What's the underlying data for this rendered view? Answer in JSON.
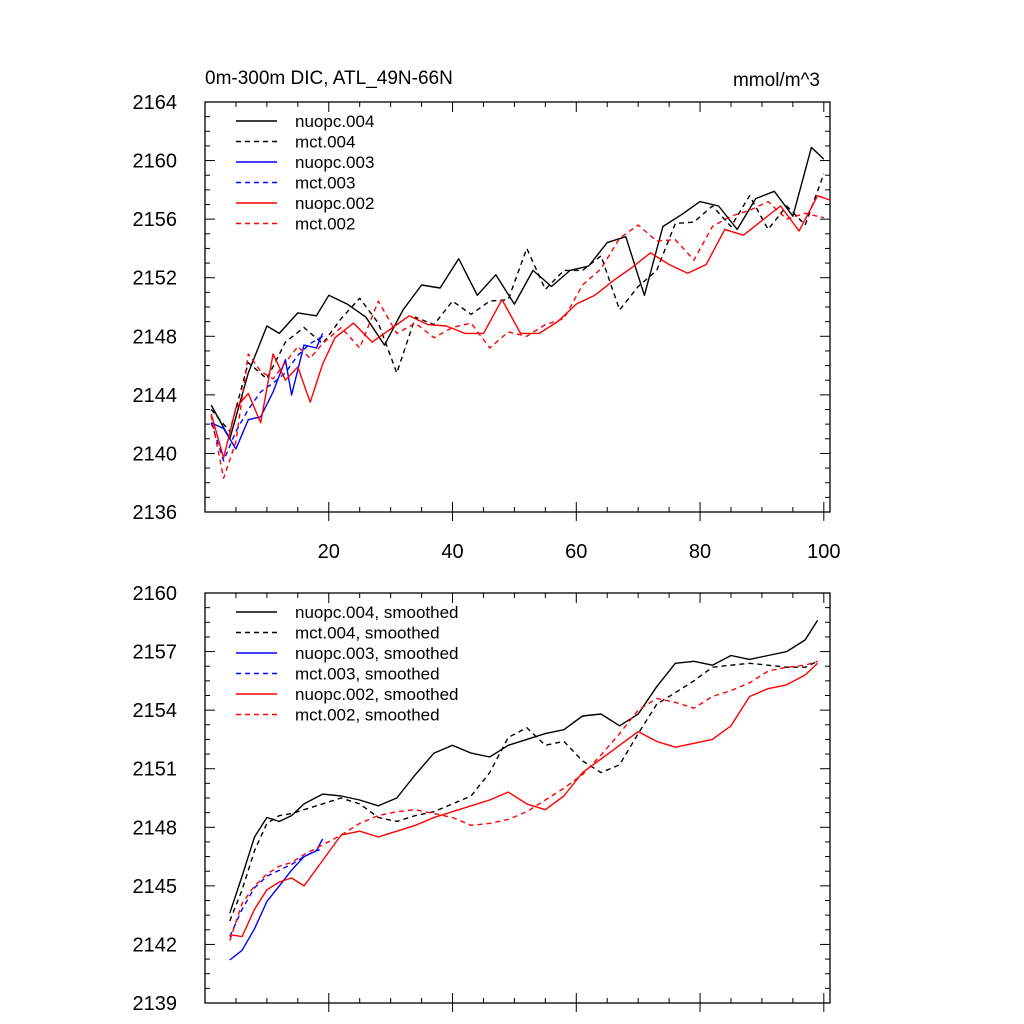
{
  "chart_data": [
    {
      "type": "line",
      "title": "0m-300m DIC, ATL_49N-66N",
      "units": "mmol/m^3",
      "xlabel": "",
      "ylabel": "",
      "xlim": [
        0,
        101
      ],
      "ylim": [
        2136,
        2164
      ],
      "xticks": [
        20,
        40,
        60,
        80,
        100
      ],
      "yticks": [
        2136,
        2140,
        2144,
        2148,
        2152,
        2156,
        2160,
        2164
      ],
      "legend_position": "top-left",
      "series": [
        {
          "name": "nuopc.004",
          "color": "#000000",
          "dashed": false,
          "x": [
            1,
            4,
            7,
            10,
            12,
            15,
            18,
            20,
            23,
            26,
            29,
            32,
            35,
            38,
            41,
            44,
            47,
            50,
            53,
            56,
            59,
            62,
            65,
            68,
            71,
            74,
            77,
            80,
            83,
            86,
            89,
            92,
            95,
            98,
            100
          ],
          "y": [
            2143.3,
            2141,
            2145.5,
            2148.7,
            2148.2,
            2149.6,
            2149.4,
            2150.8,
            2150.2,
            2149.3,
            2147.4,
            2149.8,
            2151.5,
            2151.3,
            2153.3,
            2150.8,
            2152.2,
            2150.2,
            2152.5,
            2151.4,
            2152.5,
            2152.8,
            2154.4,
            2154.8,
            2150.8,
            2155.5,
            2156.3,
            2157.2,
            2156.9,
            2155.3,
            2157.4,
            2157.9,
            2156.2,
            2160.9,
            2160.1
          ]
        },
        {
          "name": "mct.004",
          "color": "#000000",
          "dashed": true,
          "x": [
            1,
            4,
            7,
            10,
            13,
            16,
            19,
            22,
            25,
            28,
            31,
            34,
            37,
            40,
            43,
            46,
            49,
            52,
            55,
            58,
            61,
            64,
            67,
            70,
            73,
            76,
            79,
            82,
            85,
            88,
            91,
            94,
            97,
            100
          ],
          "y": [
            2143,
            2141.5,
            2146.2,
            2145.1,
            2147.6,
            2148.6,
            2147.5,
            2149.2,
            2150.6,
            2148.9,
            2145.5,
            2149.3,
            2148.8,
            2150.4,
            2149.5,
            2150.4,
            2150.5,
            2154,
            2151.2,
            2152.5,
            2152.5,
            2153.5,
            2149.8,
            2151.4,
            2152.5,
            2155.7,
            2155.8,
            2156.9,
            2155.5,
            2157.6,
            2155.3,
            2156.9,
            2155.6,
            2159.1
          ]
        },
        {
          "name": "nuopc.003",
          "color": "#0000ff",
          "dashed": false,
          "x": [
            1,
            3,
            5,
            7,
            9,
            11,
            13,
            14,
            16,
            18,
            19
          ],
          "y": [
            2142.1,
            2141.7,
            2140.3,
            2142.3,
            2142.5,
            2144.2,
            2146.4,
            2144,
            2147.4,
            2147.2,
            2148.2
          ]
        },
        {
          "name": "mct.003",
          "color": "#0000ff",
          "dashed": true,
          "x": [
            1,
            3,
            5,
            7,
            9,
            11,
            13,
            15,
            17,
            19
          ],
          "y": [
            2142.1,
            2139.5,
            2141.5,
            2143,
            2144.2,
            2144.8,
            2145.5,
            2146.7,
            2147.5,
            2148
          ]
        },
        {
          "name": "nuopc.002",
          "color": "#ff0000",
          "dashed": false,
          "x": [
            1,
            3,
            5,
            7,
            9,
            11,
            13,
            15,
            17,
            19,
            21,
            24,
            27,
            30,
            33,
            36,
            39,
            42,
            45,
            48,
            51,
            54,
            57,
            60,
            63,
            66,
            69,
            72,
            75,
            78,
            81,
            84,
            87,
            90,
            93,
            96,
            99,
            101
          ],
          "y": [
            2142.7,
            2139.7,
            2143.1,
            2144.1,
            2142.1,
            2146.8,
            2145,
            2145.9,
            2143.5,
            2146.1,
            2147.9,
            2148.9,
            2147.6,
            2148.5,
            2149.4,
            2148.8,
            2148.7,
            2148.2,
            2148.2,
            2150.5,
            2148.2,
            2148.2,
            2149,
            2150.2,
            2150.8,
            2151.8,
            2152.7,
            2153.7,
            2152.9,
            2152.3,
            2152.9,
            2155.3,
            2154.9,
            2155.9,
            2156.9,
            2155.2,
            2157.6,
            2157.3
          ]
        },
        {
          "name": "mct.002",
          "color": "#ff0000",
          "dashed": true,
          "x": [
            1,
            3,
            5,
            7,
            9,
            11,
            13,
            15,
            17,
            19,
            22,
            25,
            28,
            31,
            34,
            37,
            40,
            43,
            46,
            49,
            52,
            55,
            58,
            61,
            64,
            67,
            70,
            73,
            76,
            79,
            82,
            85,
            88,
            91,
            94,
            97,
            100
          ],
          "y": [
            2142.6,
            2138.3,
            2140.8,
            2146.8,
            2145.6,
            2145.1,
            2146.2,
            2147.3,
            2146.5,
            2147.5,
            2148.6,
            2147.2,
            2150.4,
            2148.2,
            2148.9,
            2147.9,
            2148.6,
            2148.9,
            2147.2,
            2148.3,
            2148,
            2148.8,
            2149.2,
            2151.5,
            2152.6,
            2154.7,
            2155.6,
            2154.5,
            2154.6,
            2153.2,
            2155.5,
            2156.2,
            2156.6,
            2157.2,
            2156,
            2156.4,
            2156.1
          ]
        }
      ]
    },
    {
      "type": "line",
      "title": "",
      "xlabel": "",
      "ylabel": "",
      "xlim": [
        0,
        101
      ],
      "ylim": [
        2139,
        2160
      ],
      "xticks": [
        20,
        40,
        60,
        80,
        100
      ],
      "yticks": [
        2139,
        2142,
        2145,
        2148,
        2151,
        2154,
        2157,
        2160
      ],
      "legend_position": "top-left",
      "series": [
        {
          "name": "nuopc.004, smoothed",
          "color": "#000000",
          "dashed": false,
          "x": [
            4,
            6,
            8,
            10,
            12,
            14,
            16,
            19,
            22,
            25,
            28,
            31,
            34,
            37,
            40,
            43,
            46,
            49,
            52,
            55,
            58,
            61,
            64,
            67,
            70,
            73,
            76,
            79,
            82,
            85,
            88,
            91,
            94,
            97,
            99
          ],
          "y": [
            2143.6,
            2145.5,
            2147.5,
            2148.5,
            2148.3,
            2148.6,
            2149.2,
            2149.7,
            2149.6,
            2149.4,
            2149.1,
            2149.5,
            2150.7,
            2151.8,
            2152.2,
            2151.8,
            2151.6,
            2152.2,
            2152.5,
            2152.8,
            2153,
            2153.7,
            2153.8,
            2153.2,
            2153.8,
            2155.2,
            2156.4,
            2156.5,
            2156.3,
            2156.8,
            2156.6,
            2156.8,
            2157,
            2157.6,
            2158.6
          ]
        },
        {
          "name": "mct.004, smoothed",
          "color": "#000000",
          "dashed": true,
          "x": [
            4,
            6,
            8,
            10,
            12,
            14,
            16,
            19,
            22,
            25,
            28,
            31,
            34,
            37,
            40,
            43,
            46,
            49,
            52,
            55,
            58,
            61,
            64,
            67,
            70,
            73,
            76,
            79,
            82,
            85,
            88,
            91,
            94,
            97,
            99
          ],
          "y": [
            2143.2,
            2144.8,
            2146.8,
            2148.2,
            2148.6,
            2148.7,
            2148.9,
            2149.2,
            2149.5,
            2149.2,
            2148.5,
            2148.3,
            2148.6,
            2148.8,
            2149.2,
            2149.6,
            2150.8,
            2152.6,
            2153.1,
            2152.2,
            2152.4,
            2151.4,
            2150.8,
            2151.2,
            2152.8,
            2154.3,
            2154.9,
            2155.5,
            2156.2,
            2156.3,
            2156.4,
            2156.3,
            2156.2,
            2156.2,
            2156.5
          ]
        },
        {
          "name": "nuopc.003, smoothed",
          "color": "#0000ff",
          "dashed": false,
          "x": [
            4,
            6,
            8,
            10,
            12,
            14,
            16,
            18,
            19
          ],
          "y": [
            2141.2,
            2141.7,
            2142.8,
            2144.2,
            2145,
            2145.8,
            2146.5,
            2146.8,
            2147.4
          ]
        },
        {
          "name": "mct.003, smoothed",
          "color": "#0000ff",
          "dashed": true,
          "x": [
            4,
            6,
            8,
            10,
            12,
            14,
            16,
            18,
            19
          ],
          "y": [
            2142.4,
            2143.8,
            2144.9,
            2145.5,
            2145.8,
            2146.1,
            2146.5,
            2146.8,
            2146.9
          ]
        },
        {
          "name": "nuopc.002, smoothed",
          "color": "#ff0000",
          "dashed": false,
          "x": [
            4,
            6,
            8,
            10,
            12,
            14,
            16,
            19,
            22,
            25,
            28,
            31,
            34,
            37,
            40,
            43,
            46,
            49,
            52,
            55,
            58,
            61,
            64,
            67,
            70,
            73,
            76,
            79,
            82,
            85,
            88,
            91,
            94,
            97,
            99
          ],
          "y": [
            2142.5,
            2142.4,
            2143.8,
            2144.8,
            2145.2,
            2145.4,
            2145,
            2146.3,
            2147.6,
            2147.8,
            2147.5,
            2147.8,
            2148.1,
            2148.5,
            2148.8,
            2149.1,
            2149.4,
            2149.8,
            2149.2,
            2148.9,
            2149.6,
            2150.8,
            2151.5,
            2152.2,
            2152.9,
            2152.4,
            2152.1,
            2152.3,
            2152.5,
            2153.2,
            2154.7,
            2155.1,
            2155.3,
            2155.8,
            2156.4
          ]
        },
        {
          "name": "mct.002, smoothed",
          "color": "#ff0000",
          "dashed": true,
          "x": [
            4,
            6,
            8,
            10,
            12,
            14,
            16,
            19,
            22,
            25,
            28,
            31,
            34,
            37,
            40,
            43,
            46,
            49,
            52,
            55,
            58,
            61,
            64,
            67,
            70,
            73,
            76,
            79,
            82,
            85,
            88,
            91,
            94,
            97,
            99
          ],
          "y": [
            2142.2,
            2144.1,
            2145,
            2145.6,
            2146,
            2146.2,
            2146.6,
            2147.1,
            2147.6,
            2148.2,
            2148.6,
            2148.8,
            2148.9,
            2148.7,
            2148.5,
            2148.1,
            2148.2,
            2148.4,
            2148.8,
            2149.4,
            2150,
            2150.7,
            2151.7,
            2152.8,
            2154,
            2154.6,
            2154.4,
            2154.1,
            2154.7,
            2155,
            2155.4,
            2156,
            2156.2,
            2156.3,
            2156.5
          ]
        }
      ]
    }
  ]
}
